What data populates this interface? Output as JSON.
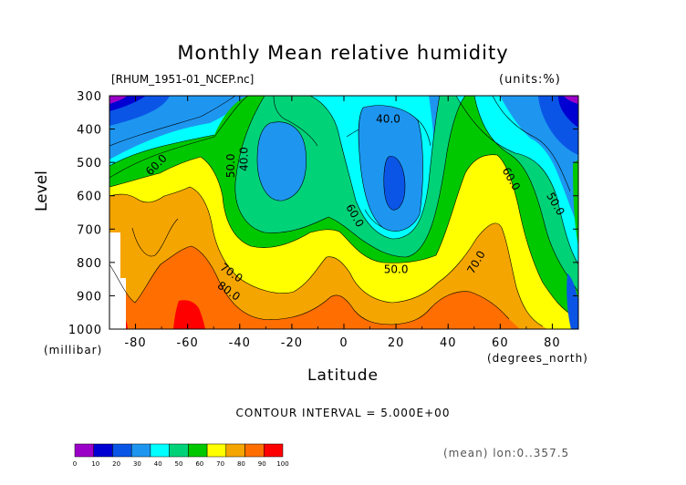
{
  "chart_data": {
    "type": "heatmap",
    "subtype": "filled-contour",
    "title": "Monthly Mean relative humidity",
    "file_label": "[RHUM_1951-01_NCEP.nc]",
    "units_label": "(units:%)",
    "xlabel": "Latitude",
    "xunits": "(degrees_north)",
    "ylabel": "Level",
    "yunits": "(millibar)",
    "xlim": [
      -90,
      90
    ],
    "ylim": [
      1000,
      300
    ],
    "x_ticks": [
      "-80",
      "-60",
      "-40",
      "-20",
      "0",
      "20",
      "40",
      "60",
      "80"
    ],
    "y_ticks": [
      "300",
      "400",
      "500",
      "600",
      "700",
      "800",
      "900",
      "1000"
    ],
    "contour_interval_label": "CONTOUR INTERVAL = 5.000E+00",
    "footnote": "(mean) lon:0..357.5",
    "contour_labels": [
      {
        "text": "40.0",
        "lat": 17,
        "lev": 380
      },
      {
        "text": "50.0",
        "lat": -42,
        "lev": 510
      },
      {
        "text": "40.0",
        "lat": -37,
        "lev": 490
      },
      {
        "text": "60.0",
        "lat": -71,
        "lev": 515
      },
      {
        "text": "60.0",
        "lat": 3,
        "lev": 665
      },
      {
        "text": "50.0",
        "lat": 20,
        "lev": 832
      },
      {
        "text": "70.0",
        "lat": -44,
        "lev": 840
      },
      {
        "text": "80.0",
        "lat": -45,
        "lev": 895
      },
      {
        "text": "70.0",
        "lat": 52,
        "lev": 805
      },
      {
        "text": "60.0",
        "lat": 63,
        "lev": 555
      },
      {
        "text": "50.0",
        "lat": 80,
        "lev": 630
      }
    ],
    "colorbar": {
      "levels": [
        "0",
        "10",
        "20",
        "30",
        "40",
        "50",
        "60",
        "70",
        "80",
        "90",
        "100"
      ],
      "colors": [
        "#9b00c8",
        "#0000d2",
        "#0a55e6",
        "#1e96f0",
        "#00ffff",
        "#00d278",
        "#00c800",
        "#ffff00",
        "#f5a500",
        "#ff6e00",
        "#ff0000"
      ]
    }
  }
}
